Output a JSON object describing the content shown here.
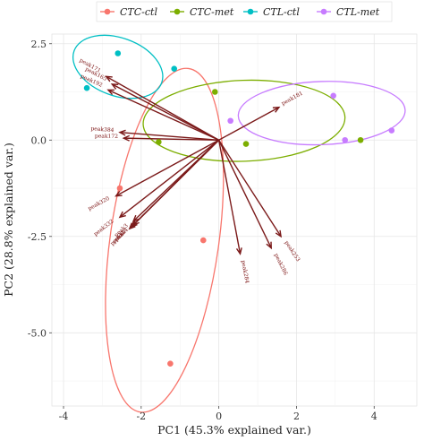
{
  "chart_data": {
    "type": "scatter",
    "title": "",
    "xlabel": "PC1 (45.3% explained var.)",
    "ylabel": "PC2 (28.8% explained var.)",
    "xlim": [
      -4.3,
      5.1
    ],
    "ylim": [
      -6.9,
      2.75
    ],
    "xticks": [
      -4,
      -2,
      0,
      2,
      4
    ],
    "xtick_labels": [
      "-4",
      "-2",
      "0",
      "2",
      "4"
    ],
    "yticks": [
      -5.0,
      -2.5,
      0.0,
      2.5
    ],
    "ytick_labels": [
      "-5.0",
      "-2.5",
      "0.0",
      "2.5"
    ],
    "grid": true,
    "legend_position": "top",
    "series": [
      {
        "name": "CTC-ctl",
        "color": "#F8766D",
        "points": [
          [
            -2.55,
            -1.25
          ],
          [
            -0.4,
            -2.6
          ],
          [
            -1.25,
            -5.8
          ]
        ],
        "ellipse": {
          "cx": -1.4,
          "cy": -2.6,
          "rx": 1.4,
          "ry": 4.5,
          "angle_deg": 8
        }
      },
      {
        "name": "CTC-met",
        "color": "#7CAE00",
        "points": [
          [
            -0.1,
            1.25
          ],
          [
            -1.55,
            -0.05
          ],
          [
            0.7,
            -0.1
          ],
          [
            3.65,
            0.0
          ]
        ],
        "ellipse": {
          "cx": 0.65,
          "cy": 0.5,
          "rx": 2.6,
          "ry": 1.05,
          "angle_deg": -2
        }
      },
      {
        "name": "CTL-ctl",
        "color": "#00BFC4",
        "points": [
          [
            -2.6,
            2.25
          ],
          [
            -1.15,
            1.85
          ],
          [
            -3.4,
            1.35
          ]
        ],
        "ellipse": {
          "cx": -2.6,
          "cy": 1.9,
          "rx": 1.2,
          "ry": 0.75,
          "angle_deg": 20
        }
      },
      {
        "name": "CTL-met",
        "color": "#C77CFF",
        "points": [
          [
            2.95,
            1.15
          ],
          [
            4.45,
            0.25
          ],
          [
            3.25,
            0.0
          ],
          [
            0.3,
            0.5
          ]
        ],
        "ellipse": {
          "cx": 2.65,
          "cy": 0.7,
          "rx": 2.15,
          "ry": 0.82,
          "angle_deg": -2
        }
      }
    ],
    "loadings": {
      "color": "#7B1A1A",
      "origin": [
        0,
        0
      ],
      "vectors": [
        {
          "name": "peak171",
          "x": -2.9,
          "y": 1.65
        },
        {
          "name": "peak165",
          "x": -2.75,
          "y": 1.45
        },
        {
          "name": "peak192",
          "x": -2.85,
          "y": 1.3
        },
        {
          "name": "peak384",
          "x": -2.55,
          "y": 0.2
        },
        {
          "name": "peak172",
          "x": -2.45,
          "y": 0.05
        },
        {
          "name": "peak181",
          "x": 1.55,
          "y": 0.85
        },
        {
          "name": "peak320",
          "x": -2.65,
          "y": -1.45
        },
        {
          "name": "peak332",
          "x": -2.55,
          "y": -2.0
        },
        {
          "name": "peak3",
          "x": -2.2,
          "y": -2.1
        },
        {
          "name": "peak4",
          "x": -2.2,
          "y": -2.2
        },
        {
          "name": "peak5",
          "x": -2.25,
          "y": -2.25
        },
        {
          "name": "peak6",
          "x": -2.3,
          "y": -2.3
        },
        {
          "name": "peak284",
          "x": 0.55,
          "y": -2.95
        },
        {
          "name": "peak286",
          "x": 1.35,
          "y": -2.8
        },
        {
          "name": "peak253",
          "x": 1.6,
          "y": -2.5
        }
      ]
    }
  }
}
